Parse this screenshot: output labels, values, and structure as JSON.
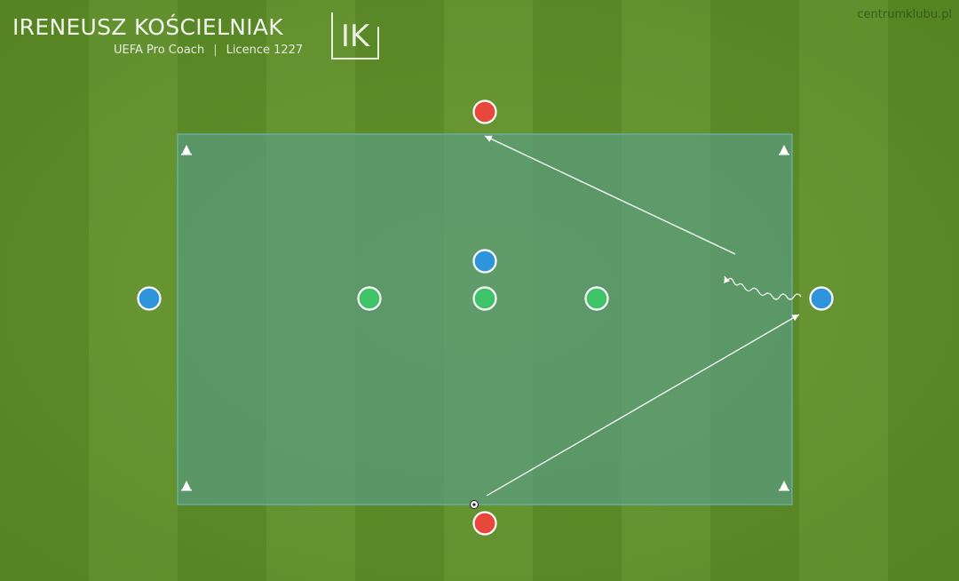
{
  "header": {
    "coach_name": "IRENEUSZ KOŚCIELNIAK",
    "title": "UEFA Pro Coach",
    "separator": "|",
    "licence": "Licence 1227",
    "logo_text": "IK",
    "site": "centrumklubu.pl"
  },
  "colors": {
    "grass": "#5f9226",
    "zone_fill": "#5b9c80",
    "zone_border": "#6fb8c8",
    "red_player": "#e8483c",
    "blue_player": "#2e95dc",
    "green_player": "#3fc46a",
    "player_outline": "#ffffff",
    "arrow": "#ffffff"
  },
  "icons": {
    "cone": "cone-icon",
    "ball": "ball-icon"
  },
  "players": {
    "red_count": 2,
    "blue_count": 3,
    "green_count": 3
  }
}
